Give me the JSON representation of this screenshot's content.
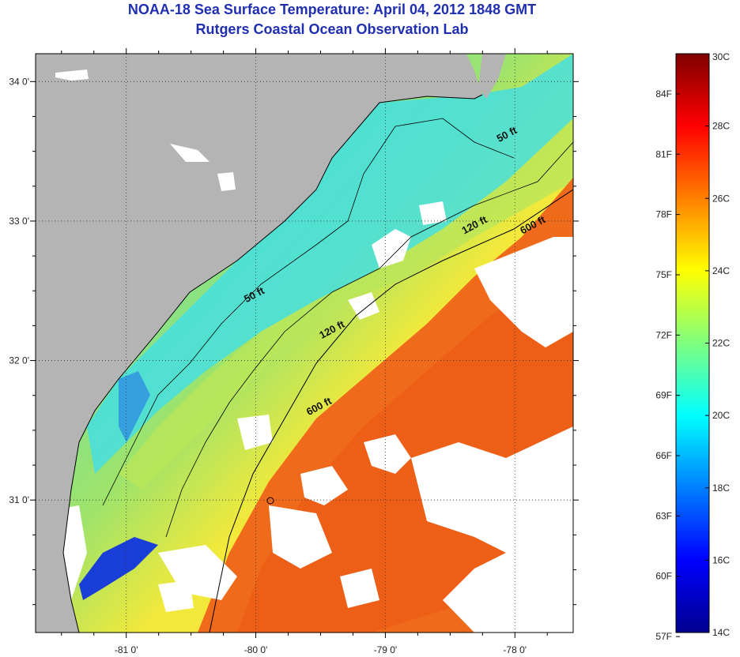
{
  "header": {
    "title": "NOAA-18 Sea Surface Temperature:  April 04, 2012 1848 GMT",
    "subtitle": "Rutgers Coastal Ocean Observation Lab"
  },
  "map": {
    "lat_range": [
      30.05,
      34.2
    ],
    "lon_range": [
      -81.7,
      -77.55
    ],
    "lat_ticks": [
      {
        "value": 34,
        "label": "34 0'"
      },
      {
        "value": 33,
        "label": "33 0'"
      },
      {
        "value": 32,
        "label": "32 0'"
      },
      {
        "value": 31,
        "label": "31 0'"
      }
    ],
    "lon_ticks": [
      {
        "value": -81,
        "label": "-81 0'"
      },
      {
        "value": -80,
        "label": "-80 0'"
      },
      {
        "value": -79,
        "label": "-79 0'"
      },
      {
        "value": -78,
        "label": "-78 0'"
      }
    ],
    "isobath_labels": [
      {
        "text": "50 ft",
        "lon": -78.05,
        "lat": 33.6
      },
      {
        "text": "50 ft",
        "lon": -80.0,
        "lat": 32.45
      },
      {
        "text": "120 ft",
        "lon": -78.3,
        "lat": 32.95
      },
      {
        "text": "120 ft",
        "lon": -79.4,
        "lat": 32.2
      },
      {
        "text": "600 ft",
        "lon": -77.85,
        "lat": 32.95
      },
      {
        "text": "600 ft",
        "lon": -79.5,
        "lat": 31.65
      }
    ],
    "colors": {
      "land": "#b4b4b4",
      "cloud": "#ffffff",
      "shelf_cyan": "#3fe0e0",
      "mid_green": "#9fe36a",
      "yellow": "#f2e93a",
      "orange": "#f08a1e",
      "gulfstream": "#f0651a"
    }
  },
  "colorbar": {
    "celsius": [
      {
        "value": 30,
        "label": "30C"
      },
      {
        "value": 28,
        "label": "28C"
      },
      {
        "value": 26,
        "label": "26C"
      },
      {
        "value": 24,
        "label": "24C"
      },
      {
        "value": 22,
        "label": "22C"
      },
      {
        "value": 20,
        "label": "20C"
      },
      {
        "value": 18,
        "label": "18C"
      },
      {
        "value": 16,
        "label": "16C"
      },
      {
        "value": 14,
        "label": "14C"
      }
    ],
    "fahrenheit": [
      {
        "value": 84,
        "label": "84F"
      },
      {
        "value": 81,
        "label": "81F"
      },
      {
        "value": 78,
        "label": "78F"
      },
      {
        "value": 75,
        "label": "75F"
      },
      {
        "value": 72,
        "label": "72F"
      },
      {
        "value": 69,
        "label": "69F"
      },
      {
        "value": 66,
        "label": "66F"
      },
      {
        "value": 63,
        "label": "63F"
      },
      {
        "value": 60,
        "label": "60F"
      },
      {
        "value": 57,
        "label": "57F"
      }
    ],
    "range_c": [
      14,
      30
    ]
  }
}
